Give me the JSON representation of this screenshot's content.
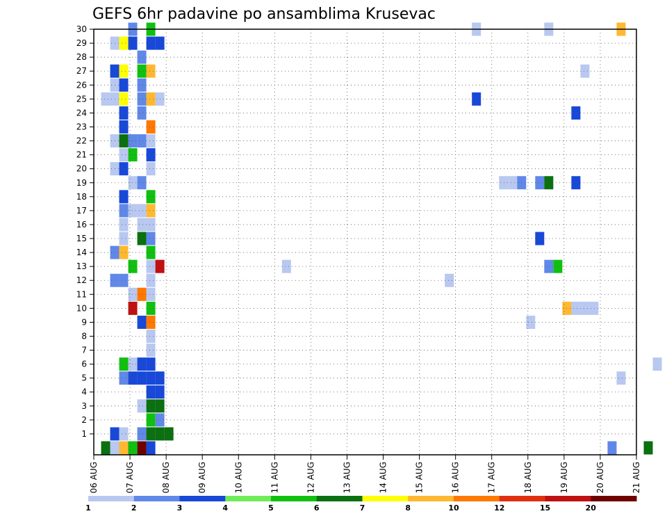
{
  "chart_data": {
    "type": "heatmap",
    "title": "GEFS 6hr padavine po ansamblima Krusevac",
    "x_tick_labels": [
      "06 AUG",
      "07 AUG",
      "08 AUG",
      "09 AUG",
      "10 AUG",
      "11 AUG",
      "12 AUG",
      "13 AUG",
      "14 AUG",
      "15 AUG",
      "16 AUG",
      "17 AUG",
      "18 AUG",
      "19 AUG",
      "20 AUG",
      "21 AUG"
    ],
    "y_tick_labels": [
      "1",
      "2",
      "3",
      "4",
      "5",
      "6",
      "7",
      "8",
      "9",
      "10",
      "11",
      "12",
      "13",
      "14",
      "15",
      "16",
      "17",
      "18",
      "19",
      "20",
      "21",
      "22",
      "23",
      "24",
      "25",
      "26",
      "27",
      "28",
      "29",
      "30"
    ],
    "x_unit": "6-hour step from 06 AUG 00Z",
    "y_unit": "ensemble member (0 = control)",
    "grid": true,
    "colorbar": {
      "position": "bottom",
      "labels": [
        "1",
        "2",
        "3",
        "4",
        "5",
        "6",
        "7",
        "8",
        "10",
        "12",
        "15",
        "20"
      ],
      "colors": [
        "#b8c8f0",
        "#6088e8",
        "#1848d8",
        "#70ec58",
        "#10c010",
        "#0a7010",
        "#ffff00",
        "#ffb830",
        "#ff7800",
        "#e03010",
        "#c01010",
        "#700000"
      ]
    },
    "cells": [
      [
        0,
        3,
        2
      ],
      [
        0,
        4,
        3
      ],
      [
        0,
        -1,
        6
      ],
      [
        0,
        0,
        3
      ],
      [
        0,
        1,
        9
      ],
      [
        0,
        0,
        1
      ],
      [
        0,
        1,
        1
      ],
      [
        0,
        1,
        8
      ],
      [
        0,
        3,
        29
      ],
      [
        0,
        2,
        2
      ],
      [
        0,
        2,
        3
      ],
      [
        0,
        2,
        5
      ],
      [
        0,
        59,
        6
      ],
      [
        0,
        55,
        2
      ],
      [
        1,
        0,
        3
      ],
      [
        1,
        1,
        1
      ],
      [
        1,
        3,
        2
      ],
      [
        1,
        4,
        6
      ],
      [
        1,
        5,
        6
      ],
      [
        1,
        6,
        6
      ],
      [
        2,
        4,
        5
      ],
      [
        2,
        5,
        2
      ],
      [
        3,
        4,
        6
      ],
      [
        3,
        5,
        6
      ],
      [
        3,
        3,
        1
      ],
      [
        4,
        4,
        3
      ],
      [
        4,
        5,
        3
      ],
      [
        5,
        1,
        2
      ],
      [
        5,
        2,
        3
      ],
      [
        5,
        3,
        3
      ],
      [
        5,
        4,
        3
      ],
      [
        5,
        5,
        3
      ],
      [
        5,
        56,
        1
      ],
      [
        6,
        1,
        5
      ],
      [
        6,
        2,
        1
      ],
      [
        6,
        3,
        3
      ],
      [
        6,
        4,
        3
      ],
      [
        6,
        60,
        1
      ],
      [
        7,
        4,
        1
      ],
      [
        8,
        4,
        1
      ],
      [
        9,
        3,
        3
      ],
      [
        9,
        4,
        10
      ],
      [
        9,
        46,
        1
      ],
      [
        10,
        2,
        15
      ],
      [
        10,
        4,
        5
      ],
      [
        10,
        50,
        8
      ],
      [
        10,
        51,
        1
      ],
      [
        10,
        52,
        1
      ],
      [
        10,
        53,
        1
      ],
      [
        11,
        2,
        1
      ],
      [
        11,
        3,
        10
      ],
      [
        11,
        4,
        1
      ],
      [
        12,
        0,
        2
      ],
      [
        12,
        1,
        2
      ],
      [
        12,
        4,
        1
      ],
      [
        12,
        37,
        1
      ],
      [
        13,
        2,
        5
      ],
      [
        13,
        4,
        1
      ],
      [
        13,
        5,
        15
      ],
      [
        13,
        19,
        1
      ],
      [
        13,
        49,
        5
      ],
      [
        13,
        48,
        2
      ],
      [
        14,
        0,
        2
      ],
      [
        14,
        1,
        8
      ],
      [
        14,
        4,
        5
      ],
      [
        15,
        1,
        1
      ],
      [
        15,
        3,
        6
      ],
      [
        15,
        4,
        2
      ],
      [
        15,
        47,
        3
      ],
      [
        16,
        1,
        1
      ],
      [
        16,
        4,
        1
      ],
      [
        16,
        3,
        1
      ],
      [
        17,
        1,
        2
      ],
      [
        17,
        2,
        1
      ],
      [
        17,
        3,
        1
      ],
      [
        17,
        4,
        8
      ],
      [
        18,
        1,
        3
      ],
      [
        18,
        4,
        5
      ],
      [
        19,
        2,
        1
      ],
      [
        19,
        3,
        2
      ],
      [
        19,
        43,
        1
      ],
      [
        19,
        44,
        1
      ],
      [
        19,
        45,
        2
      ],
      [
        19,
        47,
        2
      ],
      [
        19,
        48,
        6
      ],
      [
        19,
        51,
        3
      ],
      [
        20,
        0,
        1
      ],
      [
        20,
        1,
        3
      ],
      [
        20,
        4,
        1
      ],
      [
        21,
        1,
        1
      ],
      [
        21,
        2,
        5
      ],
      [
        21,
        4,
        3
      ],
      [
        22,
        0,
        1
      ],
      [
        22,
        1,
        6
      ],
      [
        22,
        2,
        2
      ],
      [
        22,
        3,
        2
      ],
      [
        22,
        4,
        1
      ],
      [
        23,
        1,
        3
      ],
      [
        23,
        4,
        10
      ],
      [
        24,
        1,
        3
      ],
      [
        24,
        3,
        2
      ],
      [
        24,
        51,
        3
      ],
      [
        25,
        -1,
        1
      ],
      [
        25,
        0,
        1
      ],
      [
        25,
        1,
        7
      ],
      [
        25,
        3,
        2
      ],
      [
        25,
        4,
        8
      ],
      [
        25,
        5,
        1
      ],
      [
        25,
        40,
        3
      ],
      [
        26,
        0,
        1
      ],
      [
        26,
        1,
        3
      ],
      [
        26,
        3,
        2
      ],
      [
        27,
        0,
        3
      ],
      [
        27,
        1,
        7
      ],
      [
        27,
        3,
        5
      ],
      [
        27,
        4,
        8
      ],
      [
        27,
        52,
        1
      ],
      [
        28,
        3,
        2
      ],
      [
        29,
        0,
        1
      ],
      [
        29,
        1,
        7
      ],
      [
        29,
        2,
        3
      ],
      [
        29,
        4,
        3
      ],
      [
        29,
        5,
        3
      ],
      [
        30,
        2,
        2
      ],
      [
        30,
        4,
        5
      ],
      [
        30,
        40,
        1
      ],
      [
        30,
        48,
        1
      ],
      [
        30,
        56,
        8
      ]
    ]
  }
}
